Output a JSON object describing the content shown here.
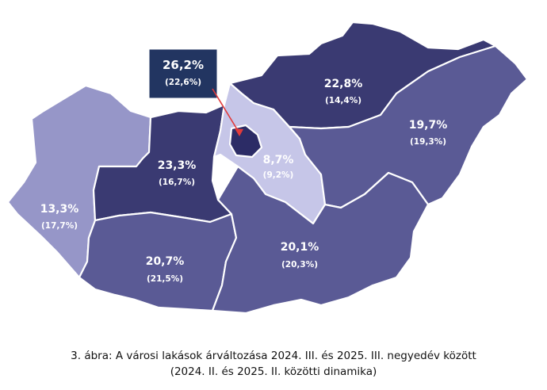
{
  "colors": {
    "dark": "#3a3a72",
    "mid": "#5a5a95",
    "light": "#9696c8",
    "lightest": "#c6c6e8",
    "budapest": "#2c2c66",
    "callout_bg": "#223561",
    "arrow": "#e23b3b"
  },
  "regions": [
    {
      "id": "western-transdanubia",
      "value": "13,3%",
      "sub": "(17,7%)",
      "color": "light"
    },
    {
      "id": "central-transdanubia",
      "value": "23,3%",
      "sub": "(16,7%)",
      "color": "dark"
    },
    {
      "id": "southern-transdanubia",
      "value": "20,7%",
      "sub": "(21,5%)",
      "color": "mid"
    },
    {
      "id": "pest",
      "value": "8,7%",
      "sub": "(9,2%)",
      "color": "lightest"
    },
    {
      "id": "northern-hungary",
      "value": "22,8%",
      "sub": "(14,4%)",
      "color": "dark"
    },
    {
      "id": "northern-great-plain",
      "value": "19,7%",
      "sub": "(19,3%)",
      "color": "mid"
    },
    {
      "id": "southern-great-plain",
      "value": "20,1%",
      "sub": "(20,3%)",
      "color": "mid"
    },
    {
      "id": "budapest",
      "value": "26,2%",
      "sub": "(22,6%)",
      "color": "budapest"
    }
  ],
  "caption": {
    "line1": "3. ábra: A városi lakások árváltozása 2024. III. és 2025. III. negyedév között",
    "line2": "(2024. II. és 2025. II. közötti dinamika)"
  }
}
